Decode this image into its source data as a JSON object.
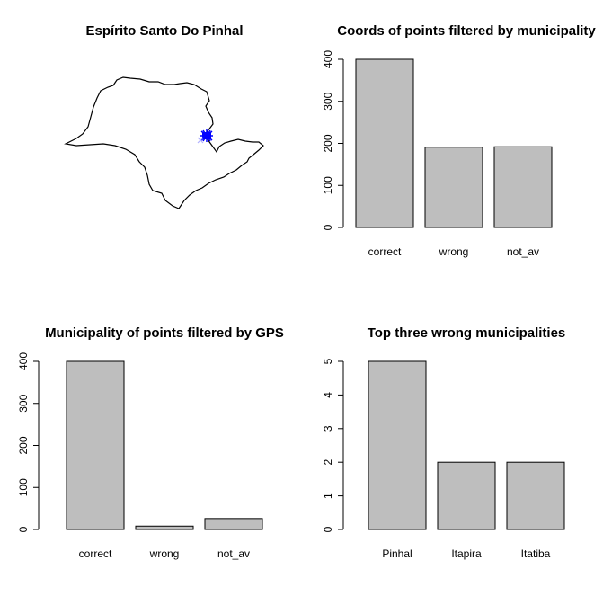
{
  "colors": {
    "bar_fill": "#bebebe",
    "bar_stroke": "#000000",
    "point_color": "#0000ff",
    "outlier_color": "#b0b0ff"
  },
  "map_panel": {
    "title": "Espírito Santo Do Pinhal"
  },
  "chart_data": [
    {
      "type": "bar",
      "title": "Coords of points filtered by municipality",
      "categories": [
        "correct",
        "wrong",
        "not_av"
      ],
      "values": [
        400,
        191,
        192
      ],
      "ylim": [
        0,
        400
      ],
      "yticks": [
        0,
        100,
        200,
        300,
        400
      ],
      "xlabel": "",
      "ylabel": ""
    },
    {
      "type": "bar",
      "title": "Municipality of points filtered by GPS",
      "categories": [
        "correct",
        "wrong",
        "not_av"
      ],
      "values": [
        400,
        8,
        26
      ],
      "ylim": [
        0,
        400
      ],
      "yticks": [
        0,
        100,
        200,
        300,
        400
      ],
      "xlabel": "",
      "ylabel": ""
    },
    {
      "type": "bar",
      "title": "Top three wrong municipalities",
      "categories": [
        "Pinhal",
        "Itapira",
        "Itatiba"
      ],
      "values": [
        5,
        2,
        2
      ],
      "ylim": [
        0,
        5
      ],
      "yticks": [
        0,
        1,
        2,
        3,
        4,
        5
      ],
      "xlabel": "",
      "ylabel": ""
    }
  ]
}
